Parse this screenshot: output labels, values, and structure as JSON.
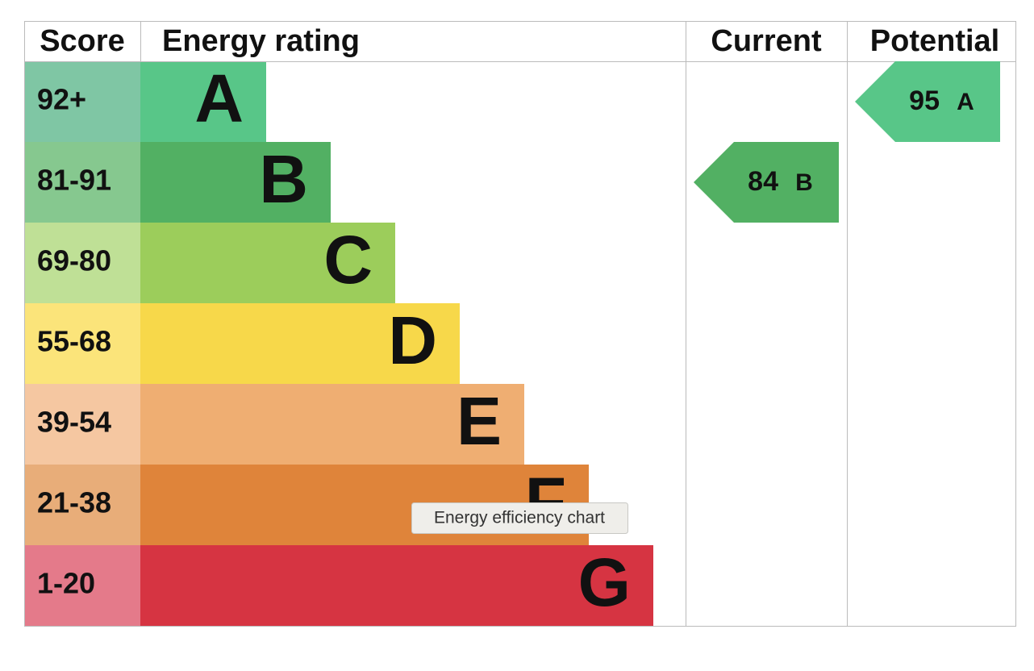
{
  "header": {
    "score": "Score",
    "rating": "Energy rating",
    "current": "Current",
    "potential": "Potential"
  },
  "rows": [
    {
      "score": "92+",
      "letter": "A"
    },
    {
      "score": "81-91",
      "letter": "B"
    },
    {
      "score": "69-80",
      "letter": "C"
    },
    {
      "score": "55-68",
      "letter": "D"
    },
    {
      "score": "39-54",
      "letter": "E"
    },
    {
      "score": "21-38",
      "letter": "F"
    },
    {
      "score": "1-20",
      "letter": "G"
    }
  ],
  "current": {
    "score": "84",
    "letter": "B"
  },
  "potential": {
    "score": "95",
    "letter": "A"
  },
  "tooltip": "Energy efficiency chart"
}
